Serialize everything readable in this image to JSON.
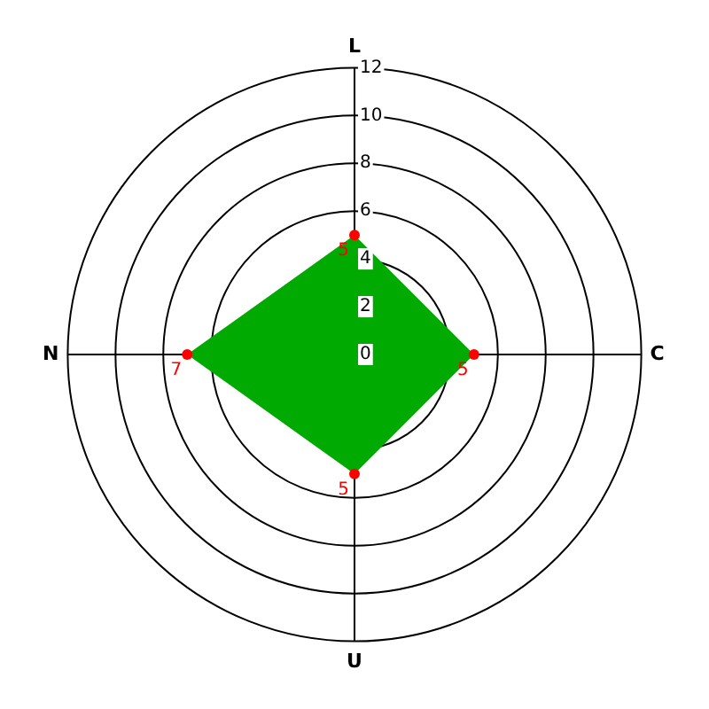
{
  "chart_data": {
    "type": "radar",
    "categories": [
      "L",
      "C",
      "U",
      "N"
    ],
    "series": [
      {
        "color": "#00aa00",
        "values": [
          5,
          5,
          5,
          7
        ]
      }
    ],
    "ylim": [
      0,
      12
    ],
    "yticks": [
      0,
      2,
      4,
      6,
      8,
      10,
      12
    ],
    "grid": true,
    "legend": false,
    "marker": "circle",
    "data_labels": true
  }
}
